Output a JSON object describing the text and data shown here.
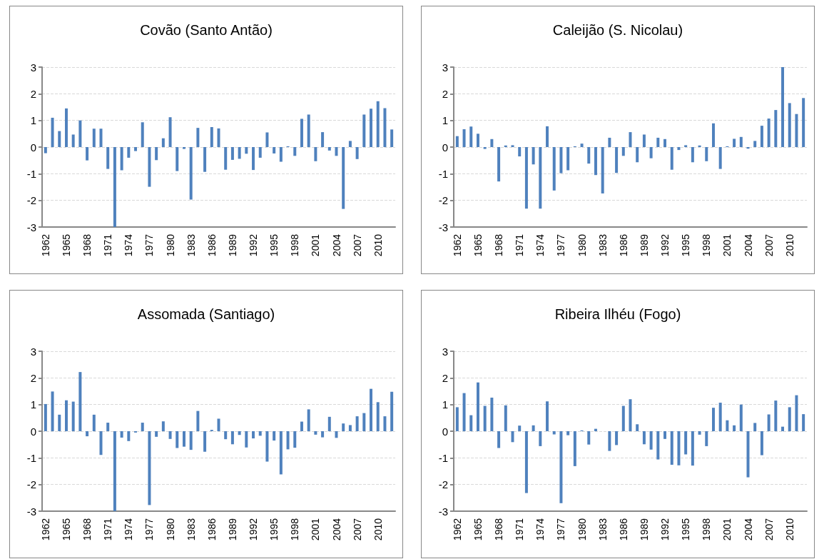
{
  "chart_data": [
    {
      "type": "bar",
      "title": "Covão (Santo Antão)",
      "categories": [
        "1962",
        null,
        null,
        "1965",
        null,
        null,
        "1968",
        null,
        null,
        "1971",
        null,
        null,
        "1974",
        null,
        null,
        "1977",
        null,
        null,
        "1980",
        null,
        null,
        "1983",
        null,
        null,
        "1986",
        null,
        null,
        "1989",
        null,
        null,
        "1992",
        null,
        null,
        "1995",
        null,
        null,
        "1998",
        null,
        null,
        "2001",
        null,
        null,
        "2004",
        null,
        null,
        "2007",
        null,
        null,
        "2010",
        null,
        null
      ],
      "values": [
        -0.23,
        1.1,
        0.6,
        1.45,
        0.47,
        1.0,
        -0.5,
        0.69,
        0.69,
        -0.82,
        -3.0,
        -0.87,
        -0.4,
        -0.15,
        0.93,
        -1.49,
        -0.49,
        0.33,
        1.12,
        -0.9,
        -0.07,
        -1.97,
        0.72,
        -0.93,
        0.75,
        0.7,
        -0.85,
        -0.48,
        -0.44,
        -0.25,
        -0.86,
        -0.4,
        0.55,
        -0.24,
        -0.55,
        0.03,
        -0.33,
        1.06,
        1.22,
        -0.53,
        0.56,
        -0.13,
        -0.33,
        -2.32,
        0.23,
        -0.45,
        1.22,
        1.44,
        1.72,
        1.46,
        0.66
      ],
      "color": "#4f81bd",
      "ylim": [
        -3,
        3
      ],
      "yticks": [
        -3,
        -2,
        -1,
        0,
        1,
        2,
        3
      ],
      "grid": "y"
    },
    {
      "type": "bar",
      "title": "Caleijão (S. Nicolau)",
      "categories": [
        "1962",
        null,
        null,
        "1965",
        null,
        null,
        "1968",
        null,
        null,
        "1971",
        null,
        null,
        "1974",
        null,
        null,
        "1977",
        null,
        null,
        "1980",
        null,
        null,
        "1983",
        null,
        null,
        "1986",
        null,
        null,
        "1989",
        null,
        null,
        "1992",
        null,
        null,
        "1995",
        null,
        null,
        "1998",
        null,
        null,
        "2001",
        null,
        null,
        "2004",
        null,
        null,
        "2007",
        null,
        null,
        "2010",
        null,
        null
      ],
      "values": [
        0.41,
        0.67,
        0.77,
        0.5,
        -0.07,
        0.3,
        -1.29,
        0.06,
        0.07,
        -0.35,
        -2.31,
        -0.65,
        -2.31,
        0.78,
        -1.63,
        -0.98,
        -0.87,
        0.03,
        0.13,
        -0.62,
        -1.05,
        -1.74,
        0.35,
        -0.97,
        -0.33,
        0.56,
        -0.57,
        0.47,
        -0.42,
        0.35,
        0.3,
        -0.85,
        -0.11,
        0.07,
        -0.57,
        0.06,
        -0.53,
        0.89,
        -0.82,
        0.03,
        0.31,
        0.38,
        -0.06,
        0.23,
        0.8,
        1.07,
        1.39,
        3.0,
        1.65,
        1.24,
        1.84
      ],
      "color": "#4f81bd",
      "ylim": [
        -3,
        3
      ],
      "yticks": [
        -3,
        -2,
        -1,
        0,
        1,
        2,
        3
      ],
      "grid": "y"
    },
    {
      "type": "bar",
      "title": "Assomada (Santiago)",
      "categories": [
        "1962",
        null,
        null,
        "1965",
        null,
        null,
        "1968",
        null,
        null,
        "1971",
        null,
        null,
        "1974",
        null,
        null,
        "1977",
        null,
        null,
        "1980",
        null,
        null,
        "1983",
        null,
        null,
        "1986",
        null,
        null,
        "1989",
        null,
        null,
        "1992",
        null,
        null,
        "1995",
        null,
        null,
        "1998",
        null,
        null,
        "2001",
        null,
        null,
        "2004",
        null,
        null,
        "2007",
        null,
        null,
        "2010",
        null,
        null
      ],
      "values": [
        1.02,
        1.49,
        0.62,
        1.16,
        1.11,
        2.22,
        -0.19,
        0.62,
        -0.89,
        0.32,
        -3.0,
        -0.24,
        -0.37,
        -0.05,
        0.32,
        -2.77,
        -0.21,
        0.37,
        -0.29,
        -0.63,
        -0.58,
        -0.7,
        0.76,
        -0.77,
        0.05,
        0.47,
        -0.3,
        -0.49,
        -0.14,
        -0.61,
        -0.27,
        -0.17,
        -1.14,
        -0.35,
        -1.62,
        -0.68,
        -0.62,
        0.36,
        0.82,
        -0.13,
        -0.23,
        0.54,
        -0.25,
        0.29,
        0.23,
        0.56,
        0.68,
        1.59,
        1.09,
        0.56,
        1.48
      ],
      "color": "#4f81bd",
      "ylim": [
        -3,
        3
      ],
      "yticks": [
        -3,
        -2,
        -1,
        0,
        1,
        2,
        3
      ],
      "grid": "y"
    },
    {
      "type": "bar",
      "title": "Ribeira Ilhéu (Fogo)",
      "categories": [
        "1962",
        null,
        null,
        "1965",
        null,
        null,
        "1968",
        null,
        null,
        "1971",
        null,
        null,
        "1974",
        null,
        null,
        "1977",
        null,
        null,
        "1980",
        null,
        null,
        "1983",
        null,
        null,
        "1986",
        null,
        null,
        "1989",
        null,
        null,
        "1992",
        null,
        null,
        "1995",
        null,
        null,
        "1998",
        null,
        null,
        "2001",
        null,
        null,
        "2004",
        null,
        null,
        "2007",
        null,
        null,
        "2010",
        null,
        null
      ],
      "values": [
        0.9,
        1.43,
        0.6,
        1.83,
        0.95,
        1.26,
        -0.63,
        0.97,
        -0.41,
        0.21,
        -2.32,
        0.22,
        -0.56,
        1.12,
        -0.12,
        -2.7,
        -0.15,
        -1.31,
        0.03,
        -0.5,
        0.09,
        null,
        -0.74,
        -0.52,
        0.95,
        1.2,
        0.26,
        -0.49,
        -0.69,
        -1.06,
        -0.29,
        -1.26,
        -1.28,
        -0.87,
        -1.29,
        -0.13,
        -0.56,
        0.88,
        1.07,
        0.41,
        0.22,
        1.0,
        -1.73,
        0.31,
        -0.9,
        0.63,
        1.15,
        0.17,
        0.9,
        1.35,
        0.64
      ],
      "color": "#4f81bd",
      "ylim": [
        -3,
        3
      ],
      "yticks": [
        -3,
        -2,
        -1,
        0,
        1,
        2,
        3
      ],
      "grid": "y"
    }
  ]
}
